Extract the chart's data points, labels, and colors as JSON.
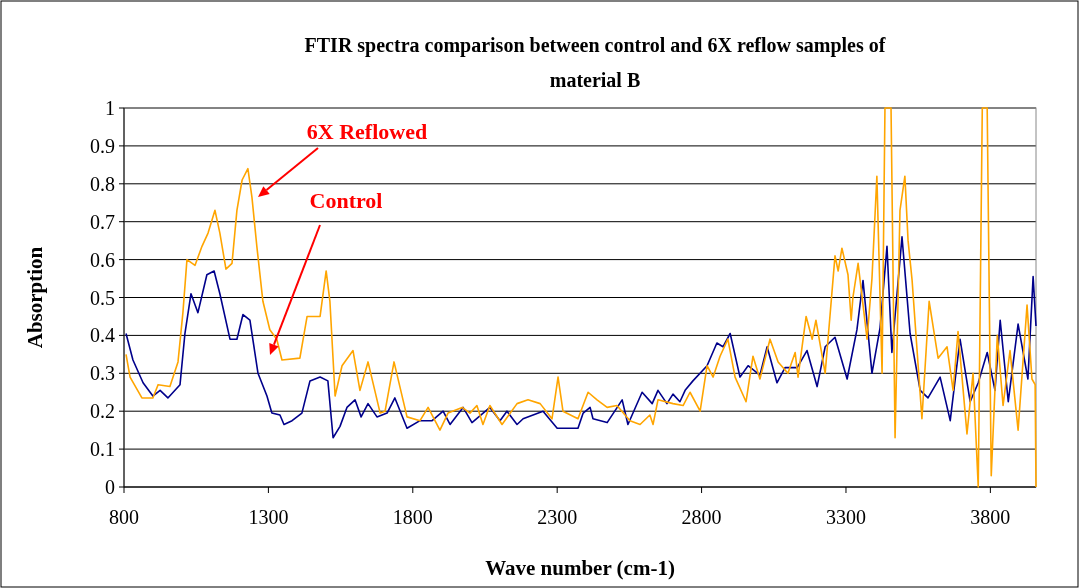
{
  "chart_data": {
    "type": "line",
    "title": "FTIR spectra comparison between control and 6X reflow samples of material B",
    "xlabel": "Wave number (cm-1)",
    "ylabel": "Absorption",
    "xlim": [
      800,
      3958
    ],
    "xticks": [
      800,
      1300,
      1800,
      2300,
      2800,
      3300,
      3800
    ],
    "ylim": [
      0,
      1
    ],
    "yticks": [
      0,
      0.1,
      0.2,
      0.3,
      0.4,
      0.5,
      0.6,
      0.7,
      0.8,
      0.9,
      1
    ],
    "grid": "y",
    "marker": "none",
    "line_style": "solid",
    "annotations": [
      "6X Reflowed",
      "Control"
    ],
    "series": [
      {
        "color": "#00008b",
        "x": [
          807,
          831,
          866,
          900,
          925,
          952,
          994,
          1011,
          1032,
          1056,
          1087,
          1112,
          1132,
          1167,
          1191,
          1212,
          1236,
          1264,
          1295,
          1312,
          1340,
          1354,
          1382,
          1416,
          1444,
          1479,
          1506,
          1524,
          1548,
          1572,
          1600,
          1621,
          1645,
          1676,
          1711,
          1738,
          1780,
          1825,
          1867,
          1905,
          1929,
          1974,
          2005,
          2067,
          2102,
          2126,
          2161,
          2182,
          2251,
          2300,
          2372,
          2390,
          2414,
          2424,
          2473,
          2525,
          2545,
          2594,
          2629,
          2649,
          2680,
          2701,
          2725,
          2743,
          2770,
          2819,
          2853,
          2874,
          2899,
          2933,
          2961,
          3002,
          3027,
          3061,
          3089,
          3131,
          3165,
          3200,
          3228,
          3262,
          3304,
          3338,
          3359,
          3390,
          3418,
          3442,
          3459,
          3494,
          3522,
          3557,
          3584,
          3626,
          3661,
          3695,
          3730,
          3758,
          3789,
          3816,
          3834,
          3862,
          3896,
          3930,
          3948,
          3958
        ],
        "values": [
          0.405,
          0.335,
          0.275,
          0.24,
          0.255,
          0.235,
          0.27,
          0.405,
          0.51,
          0.46,
          0.56,
          0.57,
          0.51,
          0.39,
          0.39,
          0.455,
          0.44,
          0.3,
          0.24,
          0.195,
          0.19,
          0.165,
          0.175,
          0.195,
          0.28,
          0.29,
          0.28,
          0.13,
          0.16,
          0.21,
          0.23,
          0.185,
          0.22,
          0.185,
          0.195,
          0.235,
          0.155,
          0.175,
          0.175,
          0.2,
          0.165,
          0.21,
          0.17,
          0.21,
          0.175,
          0.2,
          0.165,
          0.18,
          0.2,
          0.155,
          0.155,
          0.195,
          0.21,
          0.18,
          0.17,
          0.23,
          0.165,
          0.25,
          0.22,
          0.255,
          0.22,
          0.245,
          0.225,
          0.255,
          0.28,
          0.32,
          0.38,
          0.37,
          0.405,
          0.29,
          0.32,
          0.295,
          0.37,
          0.275,
          0.315,
          0.315,
          0.36,
          0.265,
          0.37,
          0.395,
          0.285,
          0.415,
          0.545,
          0.3,
          0.42,
          0.635,
          0.355,
          0.66,
          0.405,
          0.255,
          0.235,
          0.29,
          0.175,
          0.39,
          0.225,
          0.275,
          0.355,
          0.255,
          0.44,
          0.225,
          0.43,
          0.285,
          0.555,
          0.425
        ]
      },
      {
        "color": "#ffa500",
        "x": [
          807,
          821,
          862,
          900,
          918,
          959,
          987,
          1004,
          1018,
          1046,
          1070,
          1091,
          1115,
          1132,
          1153,
          1174,
          1191,
          1209,
          1229,
          1243,
          1260,
          1281,
          1305,
          1329,
          1347,
          1409,
          1434,
          1479,
          1500,
          1513,
          1531,
          1555,
          1593,
          1617,
          1645,
          1687,
          1704,
          1735,
          1780,
          1825,
          1853,
          1894,
          1922,
          1971,
          1998,
          2022,
          2043,
          2067,
          2109,
          2161,
          2199,
          2241,
          2282,
          2303,
          2320,
          2372,
          2407,
          2438,
          2473,
          2507,
          2552,
          2587,
          2621,
          2632,
          2649,
          2701,
          2736,
          2760,
          2795,
          2819,
          2840,
          2864,
          2891,
          2916,
          2954,
          2978,
          3002,
          3037,
          3065,
          3099,
          3124,
          3134,
          3162,
          3183,
          3196,
          3228,
          3262,
          3273,
          3286,
          3307,
          3318,
          3324,
          3342,
          3373,
          3390,
          3407,
          3425,
          3435,
          3456,
          3470,
          3487,
          3504,
          3515,
          3529,
          3563,
          3588,
          3619,
          3650,
          3671,
          3688,
          3719,
          3740,
          3758,
          3772,
          3789,
          3803,
          3824,
          3844,
          3868,
          3896,
          3927,
          3944,
          3955,
          3958
        ],
        "values": [
          0.35,
          0.29,
          0.235,
          0.235,
          0.27,
          0.265,
          0.33,
          0.46,
          0.6,
          0.585,
          0.635,
          0.67,
          0.73,
          0.67,
          0.575,
          0.59,
          0.73,
          0.81,
          0.84,
          0.765,
          0.635,
          0.49,
          0.415,
          0.39,
          0.335,
          0.34,
          0.45,
          0.45,
          0.57,
          0.49,
          0.24,
          0.32,
          0.36,
          0.255,
          0.33,
          0.195,
          0.2,
          0.33,
          0.185,
          0.175,
          0.21,
          0.15,
          0.195,
          0.21,
          0.195,
          0.215,
          0.165,
          0.215,
          0.165,
          0.22,
          0.23,
          0.22,
          0.18,
          0.29,
          0.2,
          0.18,
          0.25,
          0.23,
          0.21,
          0.215,
          0.175,
          0.165,
          0.19,
          0.165,
          0.23,
          0.22,
          0.215,
          0.25,
          0.2,
          0.32,
          0.29,
          0.345,
          0.39,
          0.29,
          0.225,
          0.345,
          0.285,
          0.39,
          0.33,
          0.3,
          0.355,
          0.29,
          0.45,
          0.39,
          0.44,
          0.3,
          0.61,
          0.57,
          0.63,
          0.56,
          0.44,
          0.5,
          0.59,
          0.39,
          0.55,
          0.82,
          0.3,
          1,
          1,
          0.13,
          0.73,
          0.82,
          0.65,
          0.545,
          0.18,
          0.49,
          0.34,
          0.37,
          0.255,
          0.41,
          0.14,
          0.3,
          0,
          1,
          1,
          0.03,
          0.4,
          0.215,
          0.36,
          0.15,
          0.48,
          0.285,
          0.27,
          0
        ]
      }
    ]
  }
}
